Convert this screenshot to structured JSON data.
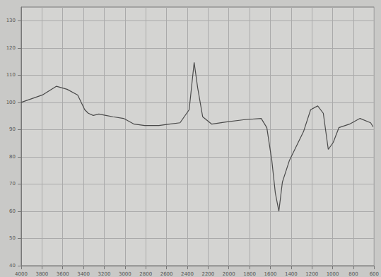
{
  "chart_data": {
    "type": "line",
    "x": [
      4000,
      3796,
      3660,
      3558,
      3456,
      3388,
      3354,
      3306,
      3252,
      3184,
      3116,
      3014,
      2912,
      2810,
      2674,
      2572,
      2470,
      2382,
      2334,
      2300,
      2252,
      2164,
      2028,
      1858,
      1688,
      1634,
      1586,
      1552,
      1518,
      1484,
      1416,
      1348,
      1280,
      1212,
      1144,
      1090,
      1042,
      994,
      940,
      838,
      736,
      634,
      610
    ],
    "values": [
      100,
      102.7,
      105.9,
      104.8,
      102.7,
      97.3,
      96,
      95.2,
      95.7,
      95.2,
      94.7,
      94.1,
      92,
      91.5,
      91.5,
      92,
      92.5,
      97.3,
      114.7,
      105.3,
      94.7,
      92,
      92.8,
      93.6,
      94.1,
      90.7,
      78.7,
      66.7,
      60,
      70.7,
      78.7,
      84,
      89.3,
      97.3,
      98.7,
      96,
      82.7,
      85.3,
      90.7,
      92,
      94.1,
      92.5,
      91
    ],
    "color": "#4a4a4a",
    "xlim": [
      4000,
      600
    ],
    "xticks": [
      4000,
      3800,
      3600,
      3400,
      3200,
      3000,
      2800,
      2600,
      2400,
      2200,
      2000,
      1800,
      1600,
      1400,
      1200,
      1000,
      800,
      600
    ],
    "ylim": [
      40,
      135
    ],
    "yticks": [
      40,
      50,
      60,
      70,
      80,
      90,
      100,
      110,
      120,
      130
    ],
    "grid": true
  }
}
